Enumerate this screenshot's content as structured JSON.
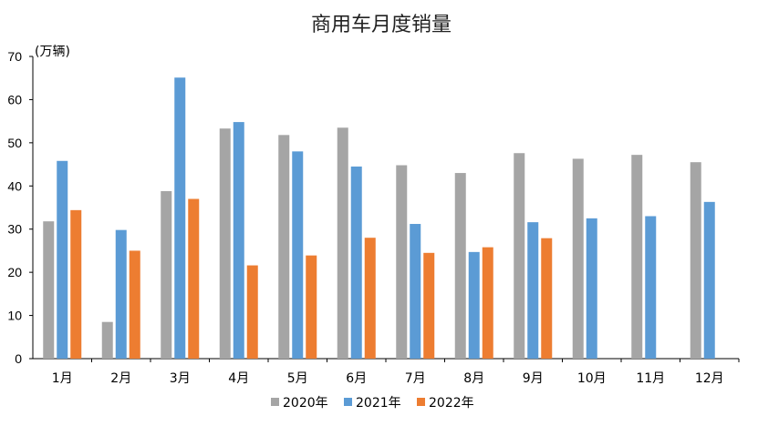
{
  "chart_data": {
    "type": "bar",
    "title": "商用车月度销量",
    "unit_label": "(万辆)",
    "xlabel": "",
    "ylabel": "万辆",
    "ylim": [
      0,
      70
    ],
    "yticks": [
      0,
      10,
      20,
      30,
      40,
      50,
      60,
      70
    ],
    "categories": [
      "1月",
      "2月",
      "3月",
      "4月",
      "5月",
      "6月",
      "7月",
      "8月",
      "9月",
      "10月",
      "11月",
      "12月"
    ],
    "series": [
      {
        "name": "2020年",
        "color": "#A5A5A5",
        "values": [
          31.8,
          8.5,
          38.8,
          53.3,
          51.8,
          53.5,
          44.8,
          43.0,
          47.6,
          46.3,
          47.2,
          45.5
        ]
      },
      {
        "name": "2021年",
        "color": "#5B9BD5",
        "values": [
          45.8,
          29.8,
          65.1,
          54.8,
          48.0,
          44.5,
          31.2,
          24.7,
          31.6,
          32.5,
          33.0,
          36.3
        ]
      },
      {
        "name": "2022年",
        "color": "#ED7D31",
        "values": [
          34.4,
          25.0,
          37.0,
          21.6,
          23.9,
          28.0,
          24.5,
          25.8,
          27.9,
          null,
          null,
          null
        ]
      }
    ],
    "legend_position": "bottom",
    "grid": false
  }
}
